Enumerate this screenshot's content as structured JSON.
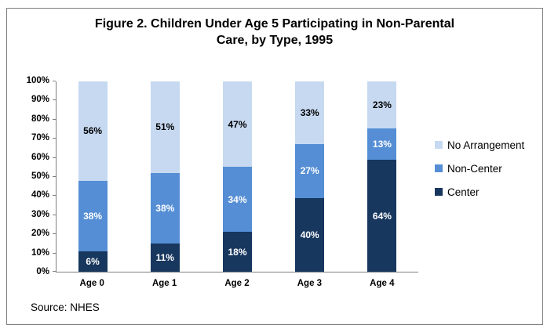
{
  "figure": {
    "title_line1": "Figure 2. Children Under Age 5 Participating in Non-Parental",
    "title_line2": "Care, by Type, 1995",
    "source": "Source: NHES"
  },
  "chart_data": {
    "type": "bar",
    "stacked": true,
    "title": "Figure 2. Children Under Age 5 Participating in Non-Parental Care, by Type, 1995",
    "categories": [
      "Age 0",
      "Age 1",
      "Age 2",
      "Age 3",
      "Age 4"
    ],
    "series": [
      {
        "name": "Center",
        "color": "#17375E",
        "label_color": "#FFFFFF",
        "values": [
          6,
          11,
          18,
          40,
          64
        ]
      },
      {
        "name": "Non-Center",
        "color": "#558ED5",
        "label_color": "#FFFFFF",
        "values": [
          38,
          38,
          34,
          27,
          13
        ]
      },
      {
        "name": "No Arrangement",
        "color": "#C6D9F1",
        "label_color": "#000000",
        "values": [
          56,
          51,
          47,
          33,
          23
        ]
      }
    ],
    "value_suffix": "%",
    "y_ticks": [
      "0%",
      "10%",
      "20%",
      "30%",
      "40%",
      "50%",
      "60%",
      "70%",
      "80%",
      "90%",
      "100%"
    ],
    "ylim": [
      0,
      100
    ],
    "ylabel": "",
    "xlabel": "",
    "grid": false,
    "legend_position": "right",
    "legend_order_top_to_bottom": [
      "No Arrangement",
      "Non-Center",
      "Center"
    ],
    "axis_color": "#7F7F7F",
    "source": "Source: NHES"
  }
}
